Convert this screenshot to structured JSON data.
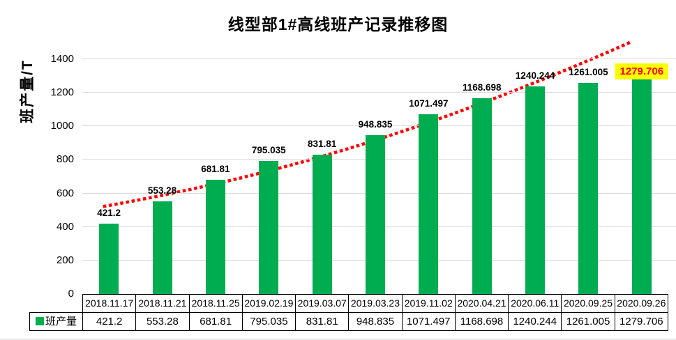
{
  "title": "线型部1#高线班产记录推移图",
  "y_axis": {
    "label": "班产量/T"
  },
  "legend": {
    "series_label": "班产量"
  },
  "colors": {
    "bar": "#00AC50",
    "trend": "#FF0000",
    "grid": "#D9D9D9",
    "highlight_bg": "#FFFF00",
    "highlight_text": "#FF0000",
    "table_border": "#000000"
  },
  "chart_data": {
    "type": "bar",
    "title": "线型部1#高线班产记录推移图",
    "xlabel": "",
    "ylabel": "班产量/T",
    "categories": [
      "2018.11.17",
      "2018.11.21",
      "2018.11.25",
      "2019.02.19",
      "2019.03.07",
      "2019.03.23",
      "2019.11.02",
      "2020.04.21",
      "2020.06.11",
      "2020.09.25",
      "2020.09.26"
    ],
    "series": [
      {
        "name": "班产量",
        "values": [
          421.2,
          553.28,
          681.81,
          795.035,
          831.81,
          948.835,
          1071.497,
          1168.698,
          1240.244,
          1261.005,
          1279.706
        ]
      }
    ],
    "data_labels": [
      "421.2",
      "553.28",
      "681.81",
      "795.035",
      "831.81",
      "948.835",
      "1071.497",
      "1168.698",
      "1240.244",
      "1261.005",
      "1279.706"
    ],
    "ylim": [
      0,
      1525
    ],
    "yticks": [
      0,
      200,
      400,
      600,
      800,
      1000,
      1200,
      1400
    ],
    "grid": true,
    "legend_position": "bottom-table",
    "trendline": {
      "style": "dotted",
      "color": "#FF0000"
    },
    "highlight": {
      "index": 10,
      "bg": "#FFFF00",
      "text_color": "#FF0000"
    }
  }
}
